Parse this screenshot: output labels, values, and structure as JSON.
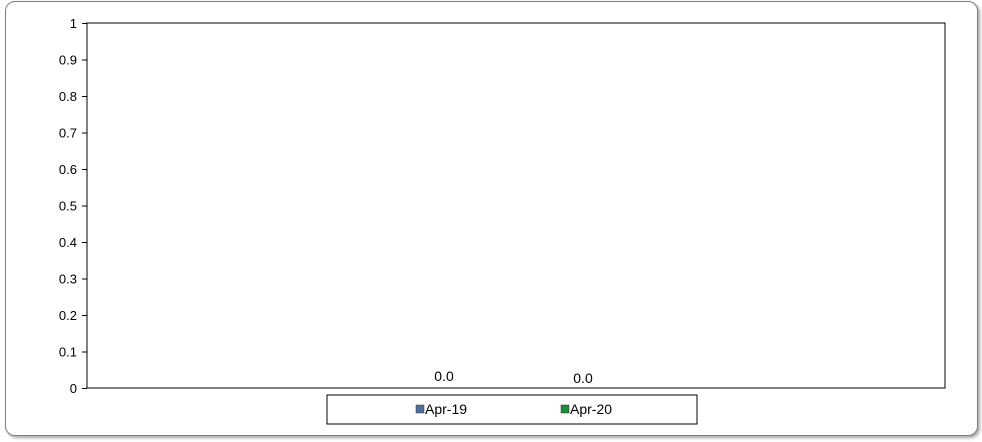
{
  "chart_data": {
    "type": "bar",
    "title": "",
    "xlabel": "",
    "ylabel": "",
    "ylim": [
      0,
      1
    ],
    "yticks": [
      "0",
      "0.1",
      "0.2",
      "0.3",
      "0.4",
      "0.5",
      "0.6",
      "0.7",
      "0.8",
      "0.9",
      "1"
    ],
    "categories": [
      ""
    ],
    "series": [
      {
        "name": "Apr-19",
        "values": [
          0.0
        ],
        "data_label": "0.0",
        "color": "#4f6f9a"
      },
      {
        "name": "Apr-20",
        "values": [
          0.0
        ],
        "data_label": "0.0",
        "color": "#1f8a3c"
      }
    ],
    "grid": false,
    "legend_position": "bottom"
  }
}
